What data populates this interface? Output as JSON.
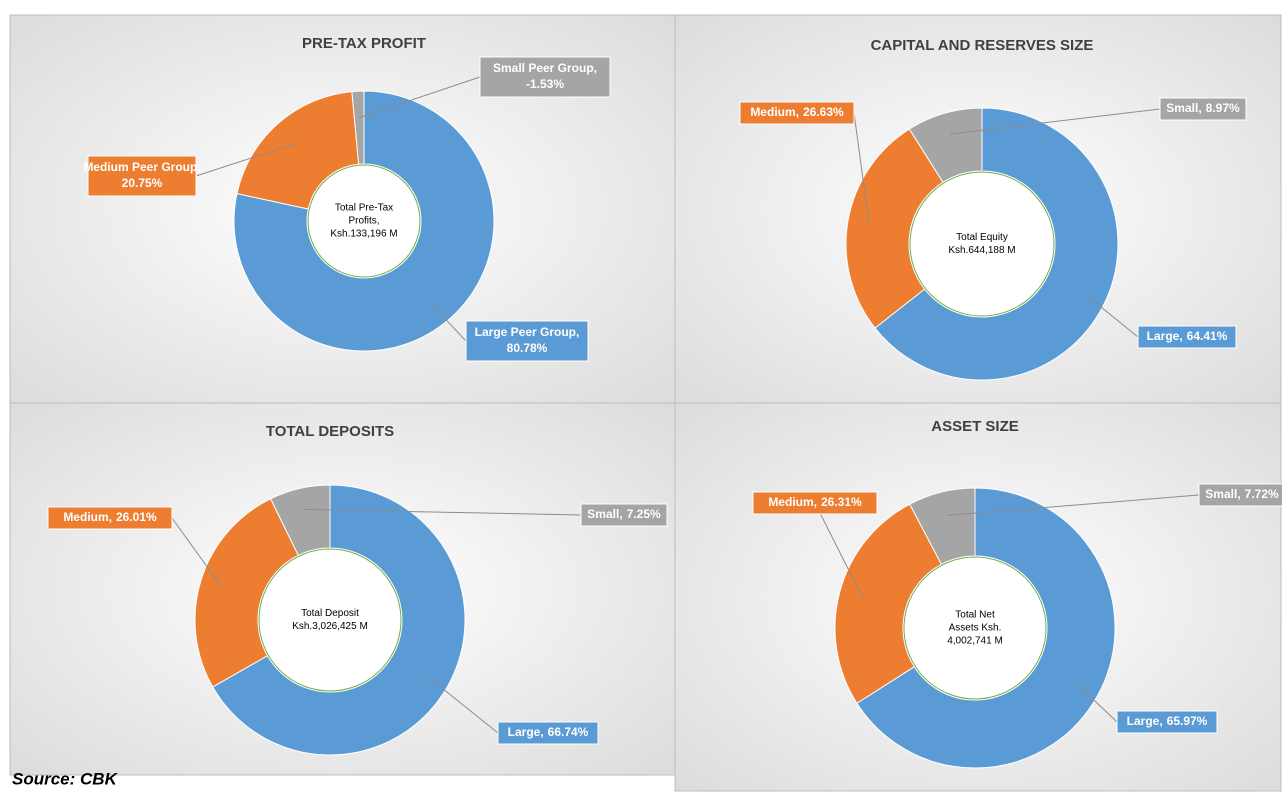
{
  "chart_data": [
    {
      "type": "pie",
      "title": "PRE-TAX PROFIT",
      "center_label": [
        "Total Pre-Tax",
        "Profits,",
        "Ksh.133,196 M"
      ],
      "categories": [
        "Large Peer Group,",
        "Medium Peer Group,",
        "Small Peer Group,"
      ],
      "values": [
        80.78,
        20.75,
        -1.53
      ],
      "value_labels": [
        "80.78%",
        "20.75%",
        "-1.53%"
      ],
      "colors": [
        "#5b9bd5",
        "#ed7d31",
        "#a5a5a5"
      ]
    },
    {
      "type": "pie",
      "title": "CAPITAL AND RESERVES SIZE",
      "center_label": [
        "Total Equity",
        "Ksh.644,188 M"
      ],
      "categories": [
        "Large,",
        "Medium,",
        "Small,"
      ],
      "values": [
        64.41,
        26.63,
        8.97
      ],
      "value_labels": [
        "64.41%",
        "26.63%",
        "8.97%"
      ],
      "colors": [
        "#5b9bd5",
        "#ed7d31",
        "#a5a5a5"
      ]
    },
    {
      "type": "pie",
      "title": "TOTAL DEPOSITS",
      "center_label": [
        "Total Deposit",
        "Ksh.3,026,425 M"
      ],
      "categories": [
        "Large,",
        "Medium,",
        "Small,"
      ],
      "values": [
        66.74,
        26.01,
        7.25
      ],
      "value_labels": [
        "66.74%",
        "26.01%",
        "7.25%"
      ],
      "colors": [
        "#5b9bd5",
        "#ed7d31",
        "#a5a5a5"
      ]
    },
    {
      "type": "pie",
      "title": "ASSET SIZE",
      "center_label": [
        "Total Net",
        "Assets Ksh.",
        "4,002,741 M"
      ],
      "categories": [
        "Large,",
        "Medium,",
        "Small,"
      ],
      "values": [
        65.97,
        26.31,
        7.72
      ],
      "value_labels": [
        "65.97%",
        "26.31%",
        "7.72%"
      ],
      "colors": [
        "#5b9bd5",
        "#ed7d31",
        "#a5a5a5"
      ]
    }
  ],
  "source": "Source: CBK"
}
